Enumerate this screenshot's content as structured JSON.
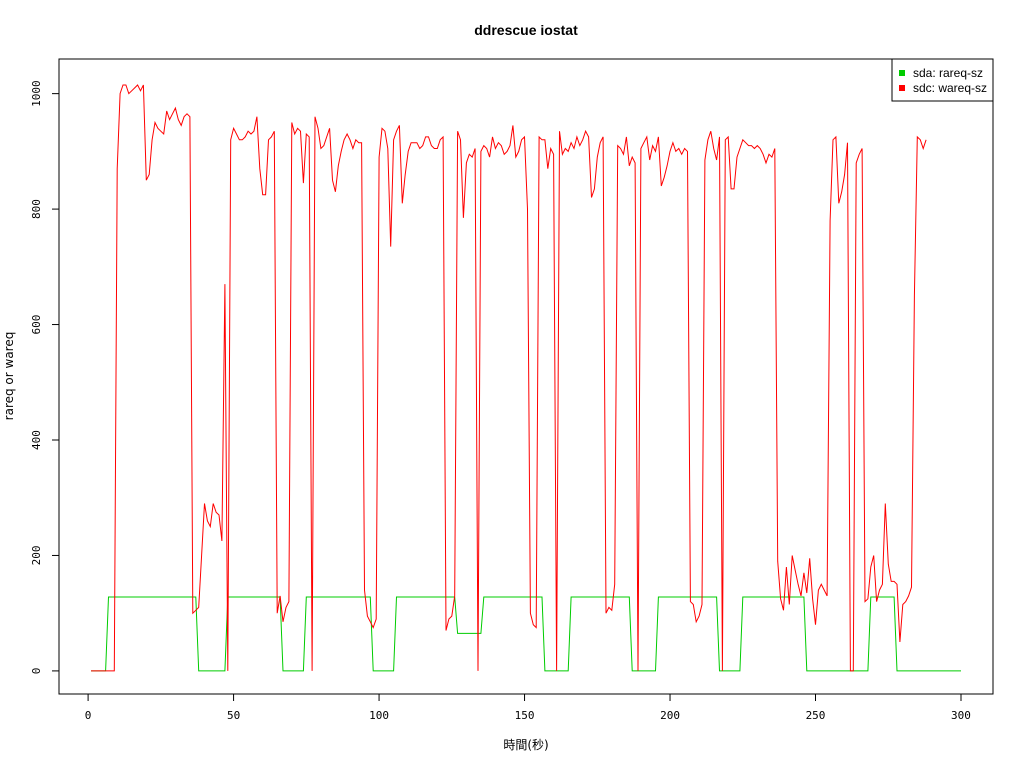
{
  "chart_data": {
    "type": "line",
    "title": "ddrescue iostat",
    "xlabel": "時間(秒)",
    "ylabel": "rareq or wareq",
    "xlim": [
      -10,
      311
    ],
    "ylim": [
      -40,
      1060
    ],
    "xticks": [
      0,
      50,
      100,
      150,
      200,
      250,
      300
    ],
    "yticks": [
      0,
      200,
      400,
      600,
      800,
      1000
    ],
    "legend_position": "top-right",
    "grid": false,
    "series": [
      {
        "name": "sda: rareq-sz",
        "color": "#00cc00",
        "points": [
          [
            1,
            0
          ],
          [
            6,
            0
          ],
          [
            7,
            128
          ],
          [
            37,
            128
          ],
          [
            38,
            0
          ],
          [
            47,
            0
          ],
          [
            48,
            128
          ],
          [
            66,
            128
          ],
          [
            67,
            0
          ],
          [
            74,
            0
          ],
          [
            75,
            128
          ],
          [
            97,
            128
          ],
          [
            98,
            0
          ],
          [
            105,
            0
          ],
          [
            106,
            128
          ],
          [
            126,
            128
          ],
          [
            127,
            65
          ],
          [
            135,
            65
          ],
          [
            136,
            128
          ],
          [
            156,
            128
          ],
          [
            157,
            0
          ],
          [
            165,
            0
          ],
          [
            166,
            128
          ],
          [
            186,
            128
          ],
          [
            187,
            0
          ],
          [
            195,
            0
          ],
          [
            196,
            128
          ],
          [
            216,
            128
          ],
          [
            217,
            0
          ],
          [
            224,
            0
          ],
          [
            225,
            128
          ],
          [
            246,
            128
          ],
          [
            247,
            0
          ],
          [
            268,
            0
          ],
          [
            269,
            128
          ],
          [
            277,
            128
          ],
          [
            278,
            0
          ],
          [
            300,
            0
          ]
        ]
      },
      {
        "name": "sdc: wareq-sz",
        "color": "#ff0000",
        "points": [
          [
            1,
            0
          ],
          [
            9,
            0
          ],
          [
            10,
            870
          ],
          [
            11,
            1000
          ],
          [
            12,
            1015
          ],
          [
            13,
            1015
          ],
          [
            14,
            1000
          ],
          [
            15,
            1005
          ],
          [
            16,
            1010
          ],
          [
            17,
            1015
          ],
          [
            18,
            1005
          ],
          [
            19,
            1015
          ],
          [
            20,
            850
          ],
          [
            21,
            860
          ],
          [
            22,
            920
          ],
          [
            23,
            950
          ],
          [
            24,
            940
          ],
          [
            25,
            935
          ],
          [
            26,
            930
          ],
          [
            27,
            970
          ],
          [
            28,
            955
          ],
          [
            29,
            965
          ],
          [
            30,
            975
          ],
          [
            31,
            955
          ],
          [
            32,
            945
          ],
          [
            33,
            960
          ],
          [
            34,
            965
          ],
          [
            35,
            960
          ],
          [
            36,
            100
          ],
          [
            37,
            105
          ],
          [
            38,
            110
          ],
          [
            39,
            200
          ],
          [
            40,
            290
          ],
          [
            41,
            260
          ],
          [
            42,
            250
          ],
          [
            43,
            290
          ],
          [
            44,
            275
          ],
          [
            45,
            270
          ],
          [
            46,
            225
          ],
          [
            47,
            670
          ],
          [
            48,
            0
          ],
          [
            49,
            920
          ],
          [
            50,
            940
          ],
          [
            51,
            930
          ],
          [
            52,
            920
          ],
          [
            53,
            920
          ],
          [
            54,
            925
          ],
          [
            55,
            935
          ],
          [
            56,
            930
          ],
          [
            57,
            935
          ],
          [
            58,
            960
          ],
          [
            59,
            870
          ],
          [
            60,
            825
          ],
          [
            61,
            825
          ],
          [
            62,
            920
          ],
          [
            63,
            925
          ],
          [
            64,
            935
          ],
          [
            65,
            100
          ],
          [
            66,
            130
          ],
          [
            67,
            85
          ],
          [
            68,
            110
          ],
          [
            69,
            120
          ],
          [
            70,
            950
          ],
          [
            71,
            930
          ],
          [
            72,
            940
          ],
          [
            73,
            935
          ],
          [
            74,
            845
          ],
          [
            75,
            930
          ],
          [
            76,
            925
          ],
          [
            77,
            0
          ],
          [
            78,
            960
          ],
          [
            79,
            940
          ],
          [
            80,
            905
          ],
          [
            81,
            910
          ],
          [
            82,
            925
          ],
          [
            83,
            940
          ],
          [
            84,
            850
          ],
          [
            85,
            830
          ],
          [
            86,
            875
          ],
          [
            87,
            900
          ],
          [
            88,
            920
          ],
          [
            89,
            930
          ],
          [
            90,
            920
          ],
          [
            91,
            905
          ],
          [
            92,
            920
          ],
          [
            93,
            915
          ],
          [
            94,
            915
          ],
          [
            95,
            140
          ],
          [
            96,
            95
          ],
          [
            97,
            85
          ],
          [
            98,
            75
          ],
          [
            99,
            90
          ],
          [
            100,
            890
          ],
          [
            101,
            940
          ],
          [
            102,
            935
          ],
          [
            103,
            905
          ],
          [
            104,
            735
          ],
          [
            105,
            920
          ],
          [
            106,
            935
          ],
          [
            107,
            945
          ],
          [
            108,
            810
          ],
          [
            109,
            860
          ],
          [
            110,
            900
          ],
          [
            111,
            915
          ],
          [
            112,
            915
          ],
          [
            113,
            915
          ],
          [
            114,
            905
          ],
          [
            115,
            910
          ],
          [
            116,
            925
          ],
          [
            117,
            925
          ],
          [
            118,
            910
          ],
          [
            119,
            905
          ],
          [
            120,
            905
          ],
          [
            121,
            920
          ],
          [
            122,
            925
          ],
          [
            123,
            70
          ],
          [
            124,
            90
          ],
          [
            125,
            95
          ],
          [
            126,
            130
          ],
          [
            127,
            935
          ],
          [
            128,
            920
          ],
          [
            129,
            785
          ],
          [
            130,
            880
          ],
          [
            131,
            895
          ],
          [
            132,
            890
          ],
          [
            133,
            905
          ],
          [
            134,
            0
          ],
          [
            135,
            900
          ],
          [
            136,
            910
          ],
          [
            137,
            905
          ],
          [
            138,
            890
          ],
          [
            139,
            925
          ],
          [
            140,
            905
          ],
          [
            141,
            915
          ],
          [
            142,
            910
          ],
          [
            143,
            895
          ],
          [
            144,
            900
          ],
          [
            145,
            910
          ],
          [
            146,
            945
          ],
          [
            147,
            890
          ],
          [
            148,
            900
          ],
          [
            149,
            920
          ],
          [
            150,
            925
          ],
          [
            151,
            800
          ],
          [
            152,
            100
          ],
          [
            153,
            80
          ],
          [
            154,
            75
          ],
          [
            155,
            925
          ],
          [
            156,
            920
          ],
          [
            157,
            920
          ],
          [
            158,
            870
          ],
          [
            159,
            905
          ],
          [
            160,
            895
          ],
          [
            161,
            0
          ],
          [
            162,
            935
          ],
          [
            163,
            895
          ],
          [
            164,
            905
          ],
          [
            165,
            900
          ],
          [
            166,
            915
          ],
          [
            167,
            905
          ],
          [
            168,
            925
          ],
          [
            169,
            910
          ],
          [
            170,
            920
          ],
          [
            171,
            935
          ],
          [
            172,
            925
          ],
          [
            173,
            820
          ],
          [
            174,
            835
          ],
          [
            175,
            890
          ],
          [
            176,
            915
          ],
          [
            177,
            925
          ],
          [
            178,
            100
          ],
          [
            179,
            110
          ],
          [
            180,
            105
          ],
          [
            181,
            150
          ],
          [
            182,
            910
          ],
          [
            183,
            905
          ],
          [
            184,
            895
          ],
          [
            185,
            925
          ],
          [
            186,
            875
          ],
          [
            187,
            890
          ],
          [
            188,
            880
          ],
          [
            189,
            0
          ],
          [
            190,
            905
          ],
          [
            191,
            915
          ],
          [
            192,
            925
          ],
          [
            193,
            885
          ],
          [
            194,
            910
          ],
          [
            195,
            900
          ],
          [
            196,
            925
          ],
          [
            197,
            840
          ],
          [
            198,
            855
          ],
          [
            199,
            875
          ],
          [
            200,
            900
          ],
          [
            201,
            915
          ],
          [
            202,
            900
          ],
          [
            203,
            905
          ],
          [
            204,
            895
          ],
          [
            205,
            905
          ],
          [
            206,
            900
          ],
          [
            207,
            120
          ],
          [
            208,
            115
          ],
          [
            209,
            85
          ],
          [
            210,
            95
          ],
          [
            211,
            115
          ],
          [
            212,
            885
          ],
          [
            213,
            920
          ],
          [
            214,
            935
          ],
          [
            215,
            905
          ],
          [
            216,
            885
          ],
          [
            217,
            925
          ],
          [
            218,
            0
          ],
          [
            219,
            920
          ],
          [
            220,
            925
          ],
          [
            221,
            835
          ],
          [
            222,
            835
          ],
          [
            223,
            890
          ],
          [
            224,
            905
          ],
          [
            225,
            920
          ],
          [
            226,
            915
          ],
          [
            227,
            910
          ],
          [
            228,
            910
          ],
          [
            229,
            905
          ],
          [
            230,
            910
          ],
          [
            231,
            905
          ],
          [
            232,
            895
          ],
          [
            233,
            880
          ],
          [
            234,
            895
          ],
          [
            235,
            890
          ],
          [
            236,
            905
          ],
          [
            237,
            190
          ],
          [
            238,
            125
          ],
          [
            239,
            105
          ],
          [
            240,
            180
          ],
          [
            241,
            115
          ],
          [
            242,
            200
          ],
          [
            243,
            175
          ],
          [
            244,
            150
          ],
          [
            245,
            130
          ],
          [
            246,
            170
          ],
          [
            247,
            135
          ],
          [
            248,
            195
          ],
          [
            249,
            125
          ],
          [
            250,
            80
          ],
          [
            251,
            140
          ],
          [
            252,
            150
          ],
          [
            253,
            140
          ],
          [
            254,
            130
          ],
          [
            255,
            780
          ],
          [
            256,
            920
          ],
          [
            257,
            925
          ],
          [
            258,
            810
          ],
          [
            259,
            830
          ],
          [
            260,
            860
          ],
          [
            261,
            915
          ],
          [
            262,
            0
          ],
          [
            263,
            0
          ],
          [
            264,
            880
          ],
          [
            265,
            895
          ],
          [
            266,
            905
          ],
          [
            267,
            120
          ],
          [
            268,
            125
          ],
          [
            269,
            180
          ],
          [
            270,
            200
          ],
          [
            271,
            120
          ],
          [
            272,
            140
          ],
          [
            273,
            150
          ],
          [
            274,
            290
          ],
          [
            275,
            185
          ],
          [
            276,
            155
          ],
          [
            277,
            155
          ],
          [
            278,
            150
          ],
          [
            279,
            50
          ],
          [
            280,
            115
          ],
          [
            281,
            120
          ],
          [
            282,
            130
          ],
          [
            283,
            145
          ],
          [
            284,
            650
          ],
          [
            285,
            925
          ],
          [
            286,
            920
          ],
          [
            287,
            905
          ],
          [
            288,
            920
          ]
        ]
      }
    ]
  }
}
